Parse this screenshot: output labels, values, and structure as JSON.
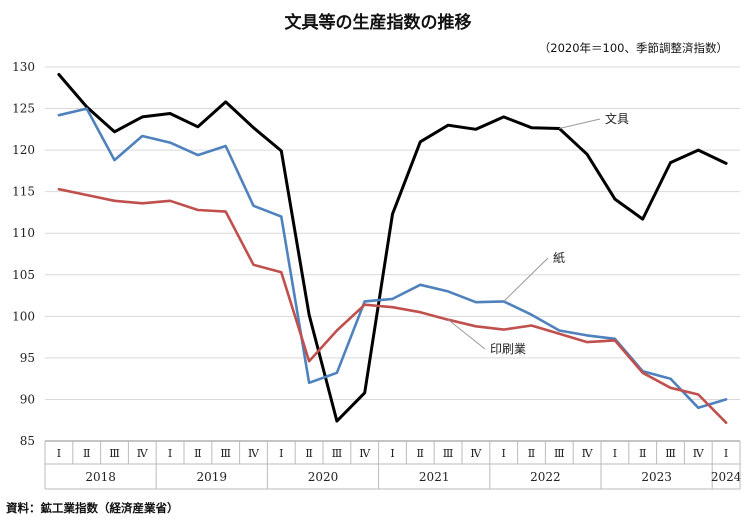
{
  "title": "文具等の生産指数の推移",
  "note": "（2020年＝100、季節調整済指数）",
  "source": "資料：鉱工業指数（経済産業省）",
  "chart_data": {
    "type": "line",
    "ylim": [
      85,
      130
    ],
    "yticks": [
      85,
      90,
      95,
      100,
      105,
      110,
      115,
      120,
      125,
      130
    ],
    "grid": true,
    "quarter_labels": [
      "Ⅰ",
      "Ⅱ",
      "Ⅲ",
      "Ⅳ",
      "Ⅰ",
      "Ⅱ",
      "Ⅲ",
      "Ⅳ",
      "Ⅰ",
      "Ⅱ",
      "Ⅲ",
      "Ⅳ",
      "Ⅰ",
      "Ⅱ",
      "Ⅲ",
      "Ⅳ",
      "Ⅰ",
      "Ⅱ",
      "Ⅲ",
      "Ⅳ",
      "Ⅰ",
      "Ⅱ",
      "Ⅲ",
      "Ⅳ",
      "Ⅰ"
    ],
    "years": [
      {
        "label": "2018",
        "quarters": 4
      },
      {
        "label": "2019",
        "quarters": 4
      },
      {
        "label": "2020",
        "quarters": 4
      },
      {
        "label": "2021",
        "quarters": 4
      },
      {
        "label": "2022",
        "quarters": 4
      },
      {
        "label": "2023",
        "quarters": 4
      },
      {
        "label": "2024",
        "quarters": 1
      }
    ],
    "series": [
      {
        "name": "文具",
        "color": "#000000",
        "values": [
          129.1,
          125.2,
          122.2,
          124.0,
          124.4,
          122.8,
          125.8,
          122.7,
          119.9,
          100.2,
          87.4,
          90.8,
          112.3,
          121.0,
          123.0,
          122.5,
          124.0,
          122.7,
          122.6,
          119.5,
          114.1,
          111.7,
          118.5,
          120.0,
          118.4
        ]
      },
      {
        "name": "紙",
        "color": "#4f81bd",
        "values": [
          124.2,
          125.0,
          118.8,
          121.7,
          120.9,
          119.4,
          120.5,
          113.3,
          112.0,
          92.0,
          93.2,
          101.8,
          102.1,
          103.8,
          103.0,
          101.7,
          101.8,
          100.2,
          98.3,
          97.7,
          97.3,
          93.4,
          92.5,
          89.0,
          90.0
        ]
      },
      {
        "name": "印刷業",
        "color": "#c0504d",
        "values": [
          115.3,
          114.6,
          113.9,
          113.6,
          113.9,
          112.8,
          112.6,
          106.2,
          105.3,
          94.6,
          98.3,
          101.4,
          101.1,
          100.5,
          99.6,
          98.8,
          98.4,
          98.9,
          97.9,
          96.9,
          97.1,
          93.2,
          91.4,
          90.6,
          87.2
        ]
      }
    ]
  }
}
